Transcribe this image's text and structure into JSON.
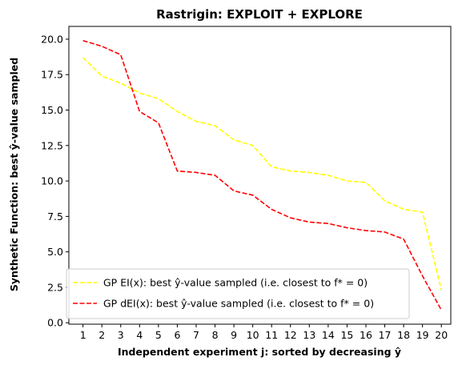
{
  "chart_data": {
    "type": "line",
    "title": "Rastrigin: EXPLOIT + EXPLORE",
    "xlabel": "Independent experiment j: sorted by decreasing ŷ",
    "ylabel": "Synthetic Function: best ŷ-value sampled",
    "x": [
      1,
      2,
      3,
      4,
      5,
      6,
      7,
      8,
      9,
      10,
      11,
      12,
      13,
      14,
      15,
      16,
      17,
      18,
      19,
      20
    ],
    "xlim": [
      0.25,
      20.5
    ],
    "ylim": [
      -0.1,
      20.9
    ],
    "yticks": [
      0.0,
      2.5,
      5.0,
      7.5,
      10.0,
      12.5,
      15.0,
      17.5,
      20.0
    ],
    "ytick_labels": [
      "0.0",
      "2.5",
      "5.0",
      "7.5",
      "10.0",
      "12.5",
      "15.0",
      "17.5",
      "20.0"
    ],
    "xtick_labels": [
      "1",
      "2",
      "3",
      "4",
      "5",
      "6",
      "7",
      "8",
      "9",
      "10",
      "11",
      "12",
      "13",
      "14",
      "15",
      "16",
      "17",
      "18",
      "19",
      "20"
    ],
    "grid": false,
    "legend_position": "lower-left",
    "series": [
      {
        "name": "GP EI(x):   best ŷ-value sampled (i.e. closest to f* = 0)",
        "color": "#ffff00",
        "style": "dashed",
        "values": [
          18.7,
          17.4,
          16.9,
          16.2,
          15.8,
          14.9,
          14.2,
          13.9,
          12.9,
          12.5,
          11.0,
          10.7,
          10.6,
          10.4,
          10.0,
          9.9,
          8.6,
          8.0,
          7.8,
          2.3
        ]
      },
      {
        "name": "GP dEI(x): best ŷ-value sampled (i.e. closest to f* = 0)",
        "color": "#ff0000",
        "style": "dashed",
        "values": [
          19.9,
          19.5,
          18.9,
          14.9,
          14.1,
          10.7,
          10.6,
          10.4,
          9.3,
          9.0,
          8.0,
          7.4,
          7.1,
          7.0,
          6.7,
          6.5,
          6.4,
          5.9,
          3.3,
          0.9
        ]
      }
    ]
  }
}
